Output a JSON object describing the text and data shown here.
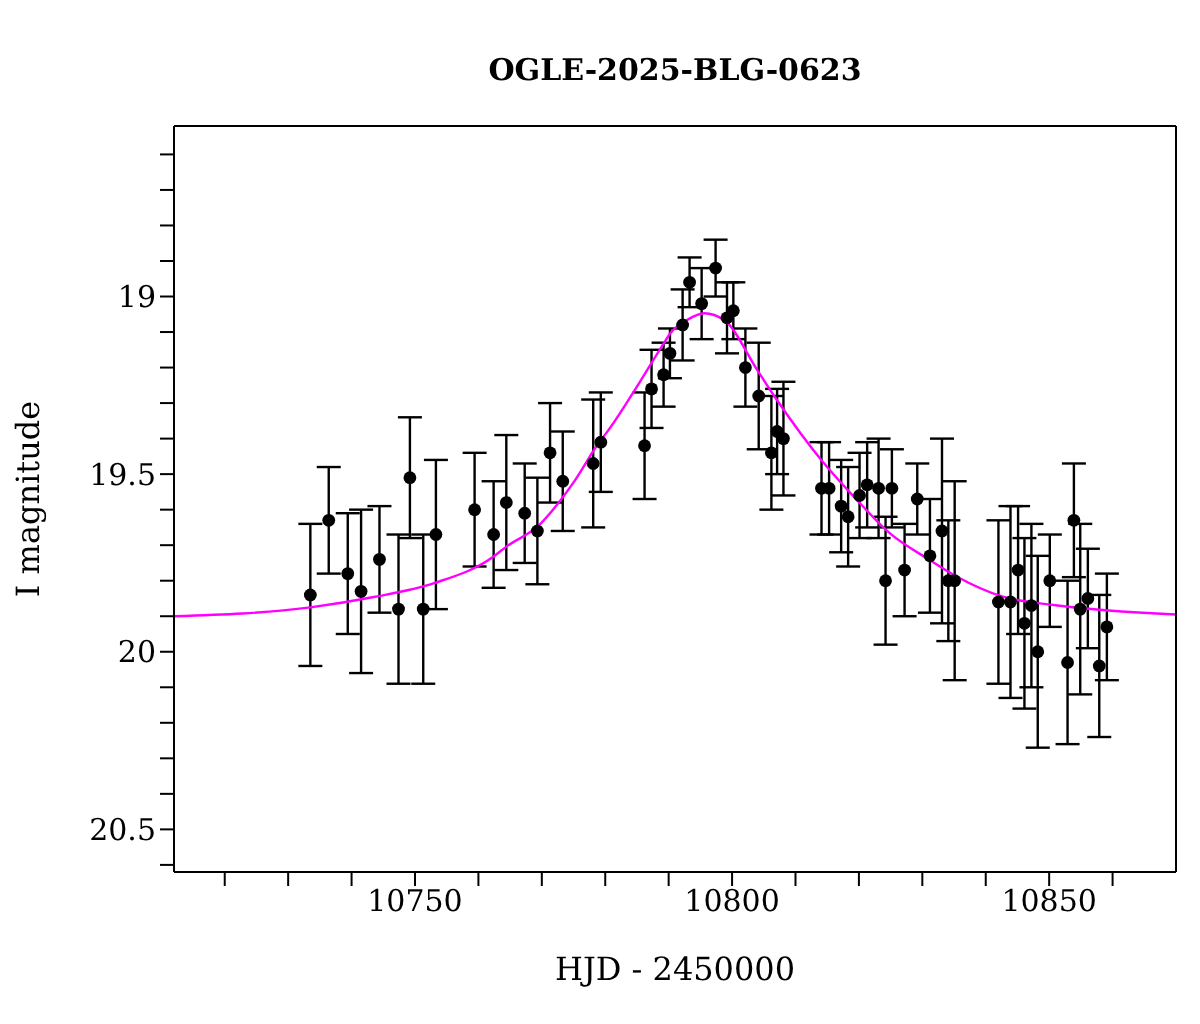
{
  "chart_data": {
    "type": "scatter",
    "title": "OGLE-2025-BLG-0623",
    "xlabel": "HJD - 2450000",
    "ylabel": "I magnitude",
    "xlim": [
      10712,
      10870
    ],
    "xticks": [
      {
        "value": 10720,
        "label": null
      },
      {
        "value": 10730,
        "label": null
      },
      {
        "value": 10740,
        "label": null
      },
      10750,
      {
        "value": 10760,
        "label": null
      },
      {
        "value": 10770,
        "label": null
      },
      {
        "value": 10780,
        "label": null
      },
      {
        "value": 10790,
        "label": null
      },
      10800,
      {
        "value": 10810,
        "label": null
      },
      {
        "value": 10820,
        "label": null
      },
      {
        "value": 10830,
        "label": null
      },
      {
        "value": 10840,
        "label": null
      },
      10850,
      {
        "value": 10860,
        "label": null
      }
    ],
    "ylim": [
      20.62,
      18.52
    ],
    "yticks": [
      {
        "value": 18.6,
        "label": null
      },
      {
        "value": 18.7,
        "label": null
      },
      {
        "value": 18.8,
        "label": null
      },
      {
        "value": 18.9,
        "label": null
      },
      19,
      {
        "value": 19.1,
        "label": null
      },
      {
        "value": 19.2,
        "label": null
      },
      {
        "value": 19.3,
        "label": null
      },
      {
        "value": 19.4,
        "label": null
      },
      19.5,
      {
        "value": 19.6,
        "label": null
      },
      {
        "value": 19.7,
        "label": null
      },
      {
        "value": 19.8,
        "label": null
      },
      {
        "value": 19.9,
        "label": null
      },
      20,
      {
        "value": 20.1,
        "label": null
      },
      {
        "value": 20.2,
        "label": null
      },
      {
        "value": 20.3,
        "label": null
      },
      {
        "value": 20.4,
        "label": null
      },
      20.5,
      {
        "value": 20.6,
        "label": null
      }
    ],
    "series": [
      {
        "color": "#000000",
        "marker": "circle",
        "x": [
          10733.5,
          10736.4,
          10739.4,
          10741.5,
          10744.4,
          10747.4,
          10749.2,
          10751.3,
          10753.3,
          10759.4,
          10762.4,
          10764.4,
          10767.3,
          10769.3,
          10771.3,
          10773.3,
          10778.1,
          10779.3,
          10786.2,
          10787.3,
          10789.2,
          10790.2,
          10792.2,
          10793.3,
          10795.2,
          10797.4,
          10799.2,
          10800.2,
          10802.1,
          10804.2,
          10806.2,
          10807.1,
          10808.1,
          10814.1,
          10815.3,
          10817.2,
          10818.3,
          10820.1,
          10821.3,
          10823.1,
          10824.2,
          10825.2,
          10827.2,
          10829.2,
          10831.2,
          10833.1,
          10834.1,
          10835.1,
          10842.0,
          10843.9,
          10845.1,
          10846.1,
          10847.2,
          10848.2,
          10850.1,
          10852.9,
          10853.9,
          10854.9,
          10856.1,
          10857.9,
          10859.1
        ],
        "values": [
          19.84,
          19.63,
          19.78,
          19.83,
          19.74,
          19.88,
          19.51,
          19.88,
          19.67,
          19.6,
          19.67,
          19.58,
          19.61,
          19.66,
          19.44,
          19.52,
          19.47,
          19.41,
          19.42,
          19.26,
          19.22,
          19.16,
          19.08,
          18.96,
          19.02,
          18.92,
          19.06,
          19.04,
          19.2,
          19.28,
          19.44,
          19.38,
          19.4,
          19.54,
          19.54,
          19.59,
          19.62,
          19.56,
          19.53,
          19.54,
          19.8,
          19.54,
          19.77,
          19.57,
          19.73,
          19.66,
          19.8,
          19.8,
          19.86,
          19.86,
          19.77,
          19.92,
          19.87,
          20.0,
          19.8,
          20.03,
          19.63,
          19.88,
          19.85,
          20.04,
          19.93
        ],
        "errors": [
          0.2,
          0.15,
          0.17,
          0.23,
          0.15,
          0.21,
          0.17,
          0.21,
          0.21,
          0.16,
          0.15,
          0.19,
          0.14,
          0.15,
          0.14,
          0.14,
          0.18,
          0.14,
          0.15,
          0.11,
          0.09,
          0.07,
          0.1,
          0.07,
          0.1,
          0.08,
          0.1,
          0.08,
          0.11,
          0.15,
          0.16,
          0.12,
          0.16,
          0.13,
          0.13,
          0.13,
          0.14,
          0.12,
          0.12,
          0.14,
          0.18,
          0.11,
          0.13,
          0.1,
          0.16,
          0.26,
          0.17,
          0.28,
          0.23,
          0.27,
          0.18,
          0.24,
          0.23,
          0.27,
          0.13,
          0.23,
          0.16,
          0.24,
          0.14,
          0.2,
          0.15
        ]
      },
      {
        "type": "line",
        "color": "#ff00ff",
        "marker": "none",
        "line_style": "solid",
        "x": [
          10712,
          10733.5,
          10743.5,
          10753,
          10762.4,
          10764.4,
          10769.3,
          10774.9,
          10779.3,
          10780.1,
          10785.3,
          10789.5,
          10790.2,
          10793,
          10795.6,
          10798.8,
          10804.0,
          10807.1,
          10814.1,
          10819.7,
          10824.9,
          10831.2,
          10835.4,
          10842.7,
          10851.0,
          10870
        ],
        "values": [
          19.9,
          19.875,
          19.846,
          19.807,
          19.732,
          19.704,
          19.648,
          19.526,
          19.404,
          19.386,
          19.245,
          19.124,
          19.105,
          19.065,
          19.047,
          19.067,
          19.208,
          19.292,
          19.461,
          19.573,
          19.667,
          19.742,
          19.788,
          19.845,
          19.869,
          19.895
        ]
      }
    ]
  }
}
